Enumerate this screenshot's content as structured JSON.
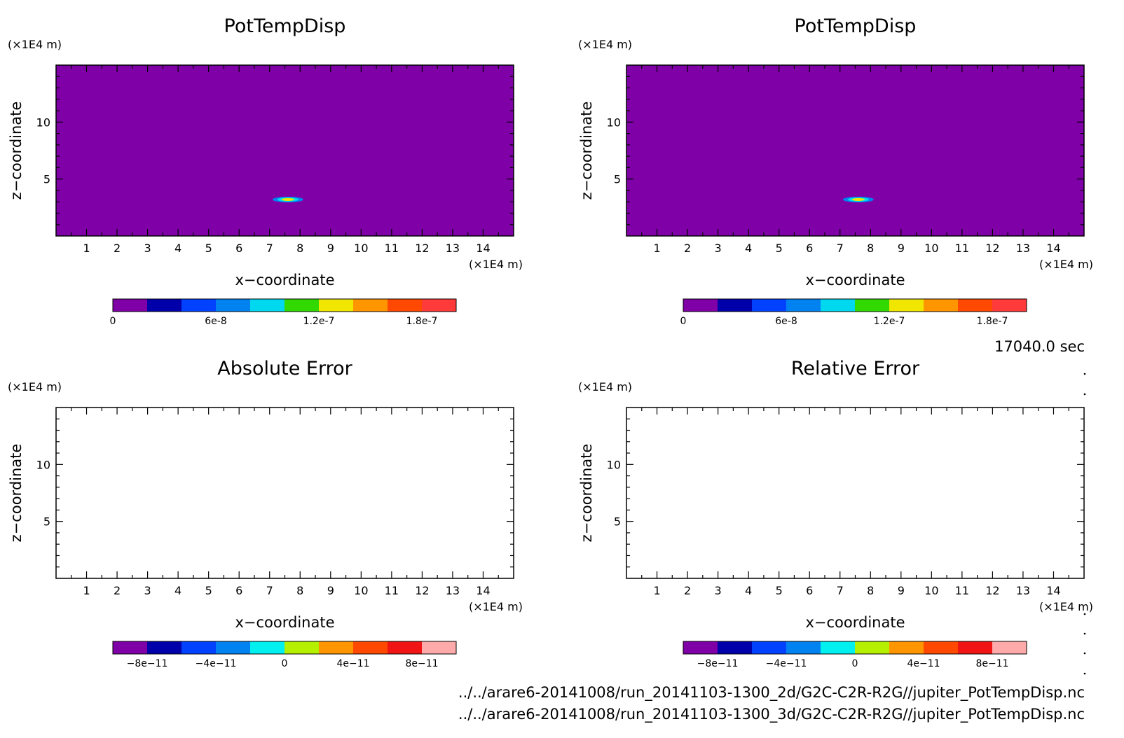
{
  "figure": {
    "time_label": "17040.0 sec",
    "file_paths": [
      "../../arare6-20141008/run_20141103-1300_2d/G2C-C2R-R2G//jupiter_PotTempDisp.nc",
      "../../arare6-20141008/run_20141103-1300_3d/G2C-C2R-R2G//jupiter_PotTempDisp.nc"
    ]
  },
  "chart_data": [
    {
      "type": "heatmap",
      "title": "PotTempDisp",
      "xlabel": "x−coordinate",
      "ylabel": "z−coordinate",
      "x_unit": "(×1E4 m)",
      "y_unit": "(×1E4 m)",
      "xlim": [
        0,
        15
      ],
      "ylim": [
        0,
        15
      ],
      "x_ticks": [
        "1",
        "2",
        "3",
        "4",
        "5",
        "6",
        "7",
        "8",
        "9",
        "10",
        "11",
        "12",
        "13",
        "14"
      ],
      "y_ticks": [
        "5",
        "10"
      ],
      "background_color": "#7f00a6",
      "feature": {
        "x": 7.6,
        "z": 3.2,
        "description": "small anomaly"
      },
      "colorbar": {
        "colors": [
          "#7f00a6",
          "#0000aa",
          "#0042ff",
          "#0083f0",
          "#00d8f0",
          "#32d900",
          "#f0e600",
          "#ff9600",
          "#ff4800",
          "#ff3a3a"
        ],
        "tick_labels": [
          "0",
          "6e-8",
          "1.2e-7",
          "1.8e-7"
        ],
        "tick_values": [
          0,
          6e-08,
          1.2e-07,
          1.8e-07
        ],
        "range": [
          0,
          2e-07
        ]
      }
    },
    {
      "type": "heatmap",
      "title": "PotTempDisp",
      "xlabel": "x−coordinate",
      "ylabel": "z−coordinate",
      "x_unit": "(×1E4 m)",
      "y_unit": "(×1E4 m)",
      "xlim": [
        0,
        15
      ],
      "ylim": [
        0,
        15
      ],
      "x_ticks": [
        "1",
        "2",
        "3",
        "4",
        "5",
        "6",
        "7",
        "8",
        "9",
        "10",
        "11",
        "12",
        "13",
        "14"
      ],
      "y_ticks": [
        "5",
        "10"
      ],
      "background_color": "#7f00a6",
      "feature": {
        "x": 7.6,
        "z": 3.2,
        "description": "small anomaly"
      },
      "colorbar": {
        "colors": [
          "#7f00a6",
          "#0000aa",
          "#0042ff",
          "#0083f0",
          "#00d8f0",
          "#32d900",
          "#f0e600",
          "#ff9600",
          "#ff4800",
          "#ff3a3a"
        ],
        "tick_labels": [
          "0",
          "6e-8",
          "1.2e-7",
          "1.8e-7"
        ],
        "tick_values": [
          0,
          6e-08,
          1.2e-07,
          1.8e-07
        ],
        "range": [
          0,
          2e-07
        ]
      }
    },
    {
      "type": "heatmap",
      "title": "Absolute Error",
      "xlabel": "x−coordinate",
      "ylabel": "z−coordinate",
      "x_unit": "(×1E4 m)",
      "y_unit": "(×1E4 m)",
      "xlim": [
        0,
        15
      ],
      "ylim": [
        0,
        15
      ],
      "x_ticks": [
        "1",
        "2",
        "3",
        "4",
        "5",
        "6",
        "7",
        "8",
        "9",
        "10",
        "11",
        "12",
        "13",
        "14"
      ],
      "y_ticks": [
        "5",
        "10"
      ],
      "background_color": "#ffffff",
      "colorbar": {
        "colors": [
          "#7f00a6",
          "#0000aa",
          "#0042ff",
          "#0083f0",
          "#00f0f0",
          "#b4f000",
          "#ff9600",
          "#ff4800",
          "#f01414",
          "#ffaaaa"
        ],
        "tick_labels": [
          "−8e−11",
          "−4e−11",
          "0",
          "4e−11",
          "8e−11"
        ],
        "tick_values": [
          -8e-11,
          -4e-11,
          0,
          4e-11,
          8e-11
        ],
        "range": [
          -1e-10,
          1e-10
        ]
      }
    },
    {
      "type": "heatmap",
      "title": "Relative Error",
      "xlabel": "x−coordinate",
      "ylabel": "z−coordinate",
      "x_unit": "(×1E4 m)",
      "y_unit": "(×1E4 m)",
      "xlim": [
        0,
        15
      ],
      "ylim": [
        0,
        15
      ],
      "x_ticks": [
        "1",
        "2",
        "3",
        "4",
        "5",
        "6",
        "7",
        "8",
        "9",
        "10",
        "11",
        "12",
        "13",
        "14"
      ],
      "y_ticks": [
        "5",
        "10"
      ],
      "background_color": "#ffffff",
      "colorbar": {
        "colors": [
          "#7f00a6",
          "#0000aa",
          "#0042ff",
          "#0083f0",
          "#00f0f0",
          "#b4f000",
          "#ff9600",
          "#ff4800",
          "#f01414",
          "#ffaaaa"
        ],
        "tick_labels": [
          "−8e−11",
          "−4e−11",
          "0",
          "4e−11",
          "8e−11"
        ],
        "tick_values": [
          -8e-11,
          -4e-11,
          0,
          4e-11,
          8e-11
        ],
        "range": [
          -1e-10,
          1e-10
        ]
      }
    }
  ]
}
